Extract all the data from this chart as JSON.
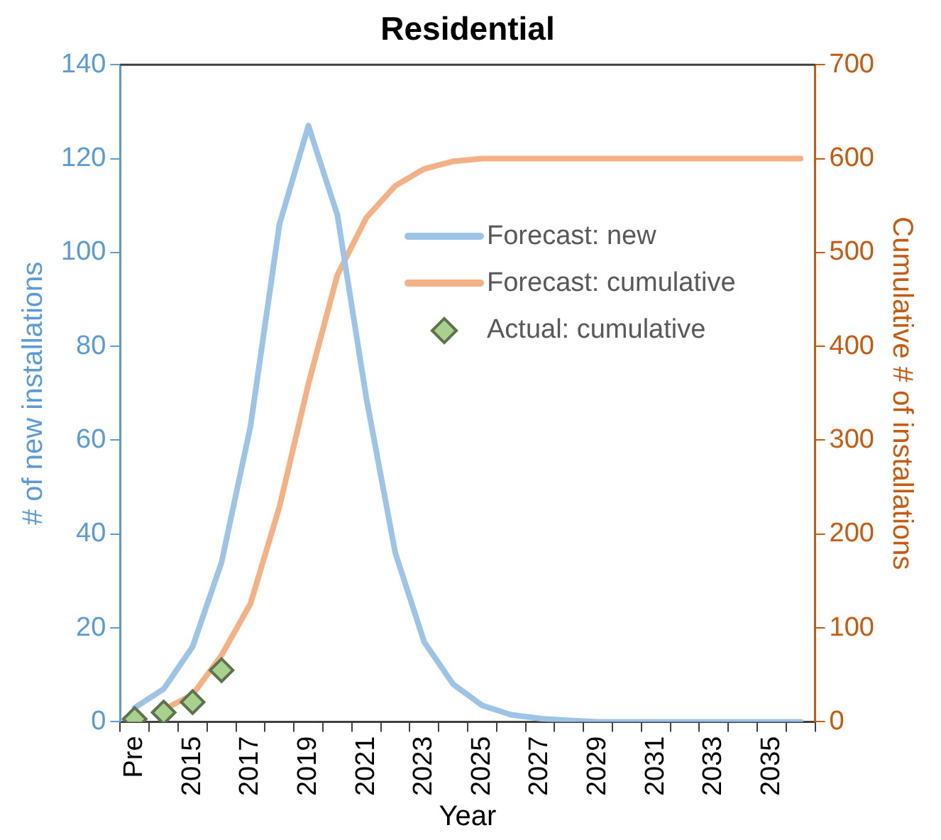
{
  "chart_data": {
    "type": "line",
    "title": "Residential",
    "xlabel": "Year",
    "ylabel": "# of new installations",
    "y2label": "Cumulative # of installations",
    "categories": [
      "Pre",
      null,
      "2015",
      null,
      "2017",
      null,
      "2019",
      null,
      "2021",
      null,
      "2023",
      null,
      "2025",
      null,
      "2027",
      null,
      "2029",
      null,
      "2031",
      null,
      "2033",
      null,
      "2035",
      null
    ],
    "series": [
      {
        "name": "Forecast: new",
        "color": "#9dc3e6",
        "values": [
          3,
          7,
          16,
          34,
          63,
          106,
          127,
          108,
          69,
          36,
          17,
          8,
          3.5,
          1.5,
          0.7,
          0.3,
          0,
          0,
          0,
          0,
          0,
          0,
          0,
          0
        ]
      },
      {
        "name": "Forecast: cumulative",
        "color": "#f4b183",
        "axis": "y2",
        "values": [
          null,
          13,
          29,
          71,
          126,
          229,
          360,
          476,
          537,
          571,
          589,
          597,
          600,
          600,
          600,
          600,
          600,
          600,
          600,
          600,
          600,
          600,
          600,
          600
        ]
      },
      {
        "name": "Actual: cumulative",
        "color": "#a9d18e",
        "type": "scatter",
        "marker": "diamond",
        "axis": "y2",
        "values": [
          3,
          10,
          21,
          55,
          null,
          null,
          null,
          null,
          null,
          null,
          null,
          null,
          null,
          null,
          null,
          null,
          null,
          null,
          null,
          null,
          null,
          null,
          null,
          null
        ]
      }
    ],
    "ylim": [
      0,
      140
    ],
    "yticks": [
      0,
      20,
      40,
      60,
      80,
      100,
      120,
      140
    ],
    "y2lim": [
      0,
      700
    ],
    "y2ticks": [
      0,
      100,
      200,
      300,
      400,
      500,
      600,
      700
    ],
    "grid": false,
    "legend": "top right",
    "line_style": "solid"
  }
}
